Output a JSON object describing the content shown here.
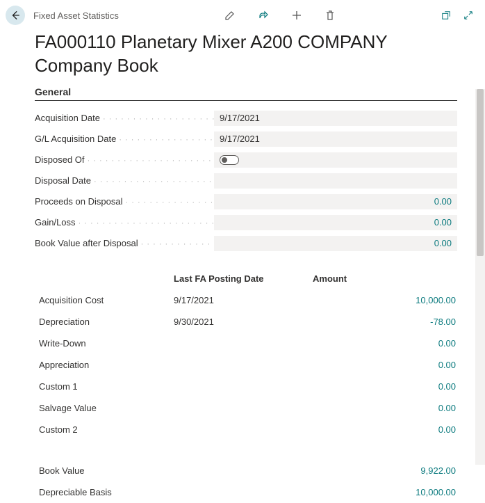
{
  "header": {
    "breadcrumb": "Fixed Asset Statistics",
    "title": "FA000110 Planetary Mixer A200 COMPANY Company Book"
  },
  "section": {
    "general_label": "General"
  },
  "form": {
    "acq_date_label": "Acquisition Date",
    "acq_date_value": "9/17/2021",
    "gl_acq_date_label": "G/L Acquisition Date",
    "gl_acq_date_value": "9/17/2021",
    "disposed_of_label": "Disposed Of",
    "disposal_date_label": "Disposal Date",
    "disposal_date_value": "",
    "proceeds_label": "Proceeds on Disposal",
    "proceeds_value": "0.00",
    "gainloss_label": "Gain/Loss",
    "gainloss_value": "0.00",
    "bv_after_label": "Book Value after Disposal",
    "bv_after_value": "0.00"
  },
  "table": {
    "col_date": "Last FA Posting Date",
    "col_amount": "Amount",
    "rows": [
      {
        "label": "Acquisition Cost",
        "date": "9/17/2021",
        "amount": "10,000.00"
      },
      {
        "label": "Depreciation",
        "date": "9/30/2021",
        "amount": "-78.00"
      },
      {
        "label": "Write-Down",
        "date": "",
        "amount": "0.00"
      },
      {
        "label": "Appreciation",
        "date": "",
        "amount": "0.00"
      },
      {
        "label": "Custom 1",
        "date": "",
        "amount": "0.00"
      },
      {
        "label": "Salvage Value",
        "date": "",
        "amount": "0.00"
      },
      {
        "label": "Custom 2",
        "date": "",
        "amount": "0.00"
      }
    ],
    "summary": [
      {
        "label": "Book Value",
        "amount": "9,922.00"
      },
      {
        "label": "Depreciable Basis",
        "amount": "10,000.00"
      }
    ]
  },
  "colors": {
    "accent": "#0b7a7e",
    "field_bg": "#f3f2f1"
  }
}
